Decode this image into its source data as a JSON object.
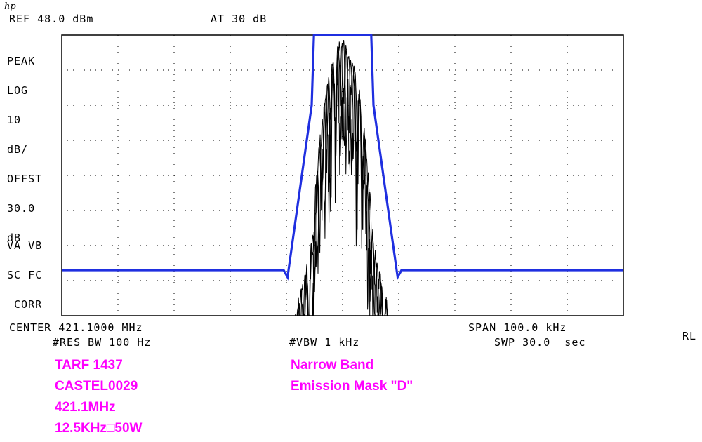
{
  "header": {
    "logo": "hp",
    "ref": "REF 48.0 dBm",
    "atten": "AT 30 dB"
  },
  "left_annotations": [
    "PEAK",
    "LOG",
    "10",
    "dB/",
    "OFFST",
    "30.0",
    "dB"
  ],
  "left_status": [
    "VA VB",
    "SC FC",
    " CORR"
  ],
  "footer": {
    "center": "CENTER 421.1000 MHz",
    "span": "SPAN 100.0 kHz",
    "res_bw": "#RES BW 100 Hz",
    "vbw": "#VBW 1 kHz",
    "sweep": "SWP 30.0  sec",
    "rl": "RL"
  },
  "notes_left": [
    "TARF 1437",
    "CASTEL0029",
    "421.1MHz",
    "12.5KHz□50W"
  ],
  "notes_right": [
    "Narrow Band",
    "Emission Mask \"D\""
  ],
  "colors": {
    "mask": "#1f2fe0",
    "trace": "#000000",
    "notes": "#ff00ff",
    "grid": "#000000"
  },
  "chart_data": {
    "type": "line",
    "x_unit": "kHz offset from center",
    "y_unit": "dB below reference (divisions of 10 dB)",
    "xlim": [
      -50,
      50
    ],
    "ylim": [
      -80,
      0
    ],
    "divisions": {
      "x": 10,
      "y": 8
    },
    "grid": "dotted",
    "series": [
      {
        "role": "mask",
        "x": [
          -50,
          -10.5,
          -9.8,
          -5.5,
          -5.1,
          5.1,
          5.5,
          9.8,
          10.5,
          50
        ],
        "y": [
          -67,
          -67,
          -69,
          -20,
          0,
          0,
          -20,
          -69,
          -67,
          -67
        ]
      },
      {
        "role": "trace",
        "x": [
          -8.5,
          -7.5,
          -6.5,
          -5.5,
          -4.8,
          -4,
          -3,
          -2,
          -1,
          0,
          1,
          2,
          3,
          4,
          4.8,
          5.5,
          6.5,
          7.5,
          8.5
        ],
        "y": [
          -80,
          -72,
          -66,
          -58,
          -42,
          -28,
          -15,
          -8,
          -3,
          0,
          -3,
          -8,
          -15,
          -28,
          -42,
          -58,
          -66,
          -72,
          -80
        ]
      }
    ]
  }
}
